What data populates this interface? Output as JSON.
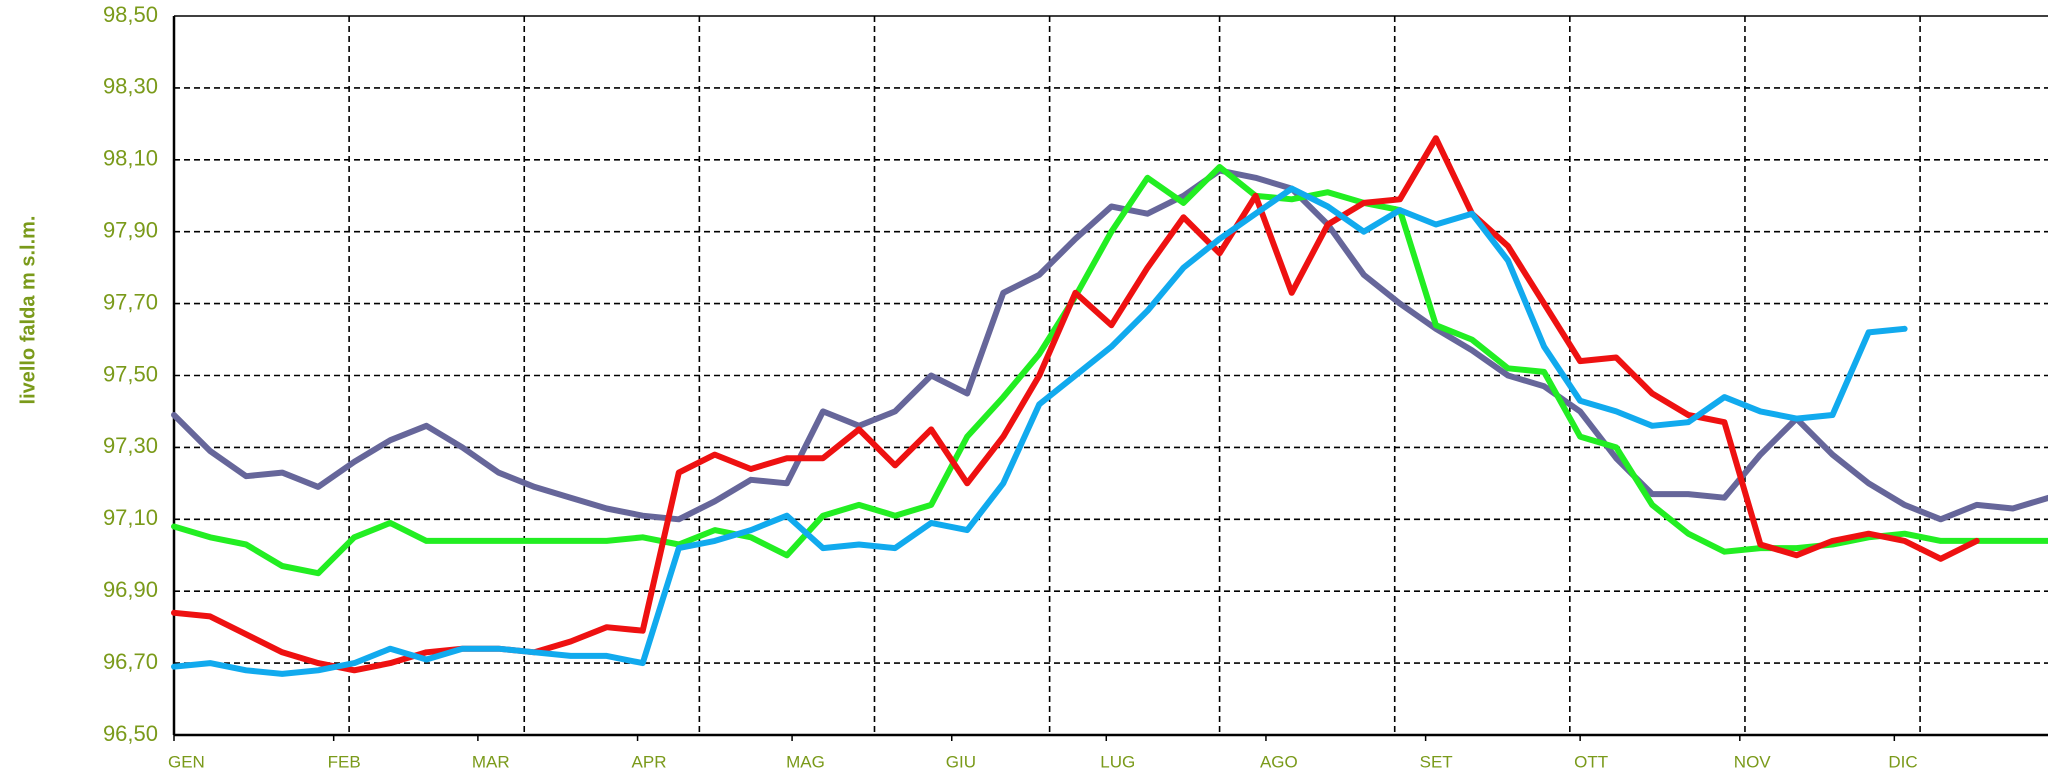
{
  "chart_data": {
    "type": "line",
    "ylabel": "livello falda m s.l.m.",
    "x": [
      0,
      7,
      14,
      21,
      28,
      35,
      42,
      49,
      56,
      63,
      70,
      77,
      84,
      91,
      98,
      105,
      112,
      119,
      126,
      133,
      140,
      147,
      154,
      161,
      168,
      175,
      182,
      189,
      196,
      203,
      210,
      217,
      224,
      231,
      238,
      245,
      252,
      259,
      266,
      273,
      280,
      287,
      294,
      301,
      308,
      315,
      322,
      329,
      336,
      343,
      350,
      357,
      364
    ],
    "xlim": [
      0,
      365
    ],
    "xticks": [
      {
        "value": 0,
        "label": "GEN"
      },
      {
        "value": 31,
        "label": "FEB"
      },
      {
        "value": 59,
        "label": "MAR"
      },
      {
        "value": 90,
        "label": "APR"
      },
      {
        "value": 120,
        "label": "MAG"
      },
      {
        "value": 151,
        "label": "GIU"
      },
      {
        "value": 181,
        "label": "LUG"
      },
      {
        "value": 212,
        "label": "AGO"
      },
      {
        "value": 243,
        "label": "SET"
      },
      {
        "value": 273,
        "label": "OTT"
      },
      {
        "value": 304,
        "label": "NOV"
      },
      {
        "value": 334,
        "label": "DIC"
      }
    ],
    "xgrid": [
      34,
      68,
      102,
      136,
      170,
      203,
      237,
      271,
      305,
      339
    ],
    "ylim": [
      96.5,
      98.5
    ],
    "yticks": [
      {
        "value": 96.5,
        "label": "96,50"
      },
      {
        "value": 96.7,
        "label": "96,70"
      },
      {
        "value": 96.9,
        "label": "96,90"
      },
      {
        "value": 97.1,
        "label": "97,10"
      },
      {
        "value": 97.3,
        "label": "97,30"
      },
      {
        "value": 97.5,
        "label": "97,50"
      },
      {
        "value": 97.7,
        "label": "97,70"
      },
      {
        "value": 97.9,
        "label": "97,90"
      },
      {
        "value": 98.1,
        "label": "98,10"
      },
      {
        "value": 98.3,
        "label": "98,30"
      },
      {
        "value": 98.5,
        "label": "98,50"
      }
    ],
    "grid": true,
    "series": [
      {
        "color": "#66669a",
        "values": [
          97.39,
          97.29,
          97.22,
          97.23,
          97.19,
          97.26,
          97.32,
          97.36,
          97.3,
          97.23,
          97.19,
          97.16,
          97.13,
          97.11,
          97.1,
          97.15,
          97.21,
          97.2,
          97.4,
          97.36,
          97.4,
          97.5,
          97.45,
          97.73,
          97.78,
          97.88,
          97.97,
          97.95,
          98.0,
          98.07,
          98.05,
          98.02,
          97.92,
          97.78,
          97.7,
          97.63,
          97.57,
          97.5,
          97.47,
          97.4,
          97.27,
          97.17,
          97.17,
          97.16,
          97.28,
          97.38,
          97.28,
          97.2,
          97.14,
          97.1,
          97.14,
          97.13,
          97.16
        ]
      },
      {
        "color": "#22ee22",
        "values": [
          97.08,
          97.05,
          97.03,
          96.97,
          96.95,
          97.05,
          97.09,
          97.04,
          97.04,
          97.04,
          97.04,
          97.04,
          97.04,
          97.05,
          97.03,
          97.07,
          97.05,
          97.0,
          97.11,
          97.14,
          97.11,
          97.14,
          97.33,
          97.44,
          97.56,
          97.72,
          97.9,
          98.05,
          97.98,
          98.08,
          98.0,
          97.99,
          98.01,
          97.98,
          97.96,
          97.64,
          97.6,
          97.52,
          97.51,
          97.33,
          97.3,
          97.14,
          97.06,
          97.01,
          97.02,
          97.02,
          97.03,
          97.05,
          97.06,
          97.04,
          97.04,
          97.04,
          97.04
        ]
      },
      {
        "color": "#ee1111",
        "values": [
          96.84,
          96.83,
          96.78,
          96.73,
          96.7,
          96.68,
          96.7,
          96.73,
          96.74,
          96.74,
          96.73,
          96.76,
          96.8,
          96.79,
          97.23,
          97.28,
          97.24,
          97.27,
          97.27,
          97.35,
          97.25,
          97.35,
          97.2,
          97.33,
          97.5,
          97.73,
          97.64,
          97.8,
          97.94,
          97.84,
          98.0,
          97.73,
          97.92,
          97.98,
          97.99,
          98.16,
          97.95,
          97.86,
          97.7,
          97.54,
          97.55,
          97.45,
          97.39,
          97.37,
          97.03,
          97.0,
          97.04,
          97.06,
          97.04,
          96.99,
          97.04,
          null,
          null
        ]
      },
      {
        "color": "#11aaee",
        "values": [
          96.69,
          96.7,
          96.68,
          96.67,
          96.68,
          96.7,
          96.74,
          96.71,
          96.74,
          96.74,
          96.73,
          96.72,
          96.72,
          96.7,
          97.02,
          97.04,
          97.07,
          97.11,
          97.02,
          97.03,
          97.02,
          97.09,
          97.07,
          97.2,
          97.42,
          97.5,
          97.58,
          97.68,
          97.8,
          97.88,
          97.95,
          98.02,
          97.97,
          97.9,
          97.96,
          97.92,
          97.95,
          97.82,
          97.58,
          97.43,
          97.4,
          97.36,
          97.37,
          97.44,
          97.4,
          97.38,
          97.39,
          97.62,
          97.63,
          null,
          null,
          null,
          null
        ]
      }
    ]
  }
}
